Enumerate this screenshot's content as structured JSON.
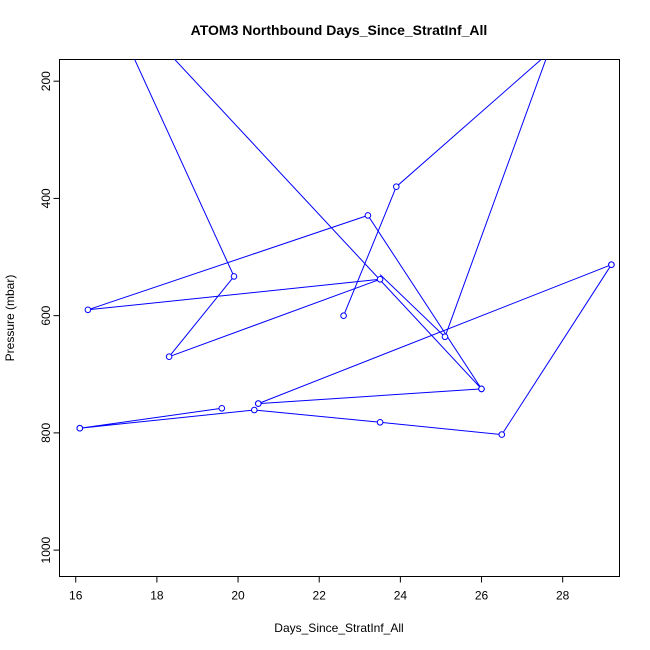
{
  "chart_data": {
    "type": "line",
    "title": "ATOM3 Northbound Days_Since_StratInf_All",
    "xlabel": "Days_Since_StratInf_All",
    "ylabel": "Pressure (mbar)",
    "xlim": [
      15.6,
      29.4
    ],
    "ylim": [
      1045,
      163
    ],
    "y_reversed": true,
    "x_ticks": [
      "16",
      "18",
      "20",
      "22",
      "24",
      "26",
      "28"
    ],
    "y_ticks": [
      "200",
      "400",
      "600",
      "800",
      "1000"
    ],
    "grid": false,
    "legend": "none",
    "series": [
      {
        "color": "#0000ff",
        "marker": "open-circle",
        "points": [
          {
            "x": 17.3,
            "y": 140,
            "marker": false
          },
          {
            "x": 19.9,
            "y": 533
          },
          {
            "x": 18.3,
            "y": 670
          },
          {
            "x": 23.5,
            "y": 538
          },
          {
            "x": 16.3,
            "y": 590
          },
          {
            "x": 23.2,
            "y": 429
          },
          {
            "x": 26.0,
            "y": 725
          },
          {
            "x": 18.4,
            "y": 160,
            "marker": false
          }
        ]
      },
      {
        "color": "#0000ff",
        "marker": "open-circle",
        "points": [
          {
            "x": 22.6,
            "y": 600
          },
          {
            "x": 23.9,
            "y": 380
          },
          {
            "x": 27.6,
            "y": 155,
            "marker": false
          }
        ]
      },
      {
        "color": "#0000ff",
        "marker": "open-circle",
        "points": [
          {
            "x": 27.6,
            "y": 160,
            "marker": false
          },
          {
            "x": 25.1,
            "y": 636
          },
          {
            "x": 23.5,
            "y": 530,
            "marker": false
          }
        ]
      },
      {
        "color": "#0000ff",
        "marker": "open-circle",
        "points": [
          {
            "x": 29.2,
            "y": 513
          },
          {
            "x": 20.5,
            "y": 750
          },
          {
            "x": 26.0,
            "y": 725
          },
          {
            "x": 20.5,
            "y": 750
          }
        ]
      },
      {
        "color": "#0000ff",
        "marker": "open-circle",
        "points": [
          {
            "x": 16.1,
            "y": 792
          },
          {
            "x": 19.6,
            "y": 758
          },
          {
            "x": 16.1,
            "y": 792
          },
          {
            "x": 20.4,
            "y": 761
          },
          {
            "x": 23.5,
            "y": 782
          },
          {
            "x": 26.5,
            "y": 803
          },
          {
            "x": 29.2,
            "y": 513
          }
        ]
      }
    ]
  }
}
